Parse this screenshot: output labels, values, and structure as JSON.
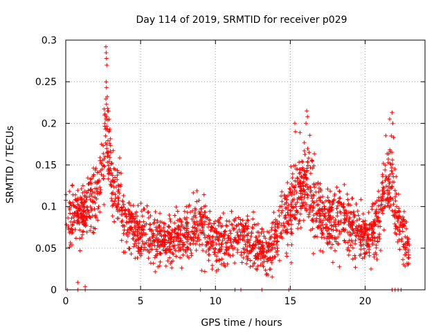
{
  "chart_data": {
    "type": "scatter",
    "title": "Day 114 of 2019, SRMTID for receiver p029",
    "xlabel": "GPS time / hours",
    "ylabel": "SRMTID / TECUs",
    "xlim": [
      0,
      24
    ],
    "ylim": [
      0,
      0.3
    ],
    "xticks": [
      0,
      5,
      10,
      15,
      20
    ],
    "xtick_labels": [
      "0",
      "5",
      "10",
      "15",
      "20"
    ],
    "yticks": [
      0,
      0.05,
      0.1,
      0.15,
      0.2,
      0.25,
      0.3
    ],
    "ytick_labels": [
      "0",
      "0.05",
      "0.1",
      "0.15",
      "0.2",
      "0.25",
      "0.3"
    ],
    "grid": true,
    "marker": "plus",
    "series_color": "#ff0000",
    "profile": [
      [
        0.0,
        0.095,
        0.02
      ],
      [
        0.3,
        0.085,
        0.022
      ],
      [
        0.7,
        0.09,
        0.02
      ],
      [
        1.0,
        0.09,
        0.02
      ],
      [
        1.3,
        0.095,
        0.02
      ],
      [
        1.6,
        0.105,
        0.02
      ],
      [
        1.9,
        0.11,
        0.02
      ],
      [
        2.2,
        0.12,
        0.025
      ],
      [
        2.5,
        0.16,
        0.03
      ],
      [
        2.7,
        0.195,
        0.03
      ],
      [
        2.9,
        0.16,
        0.03
      ],
      [
        3.2,
        0.12,
        0.025
      ],
      [
        3.6,
        0.1,
        0.025
      ],
      [
        4.0,
        0.085,
        0.02
      ],
      [
        4.5,
        0.075,
        0.018
      ],
      [
        5.0,
        0.07,
        0.018
      ],
      [
        5.5,
        0.065,
        0.017
      ],
      [
        6.0,
        0.062,
        0.017
      ],
      [
        6.5,
        0.055,
        0.016
      ],
      [
        7.0,
        0.06,
        0.017
      ],
      [
        7.5,
        0.065,
        0.017
      ],
      [
        8.0,
        0.07,
        0.018
      ],
      [
        8.5,
        0.075,
        0.018
      ],
      [
        9.0,
        0.08,
        0.02
      ],
      [
        9.3,
        0.075,
        0.02
      ],
      [
        9.6,
        0.065,
        0.018
      ],
      [
        10.0,
        0.06,
        0.018
      ],
      [
        10.5,
        0.055,
        0.017
      ],
      [
        11.0,
        0.06,
        0.018
      ],
      [
        11.5,
        0.065,
        0.018
      ],
      [
        12.0,
        0.06,
        0.018
      ],
      [
        12.5,
        0.055,
        0.017
      ],
      [
        13.0,
        0.05,
        0.017
      ],
      [
        13.5,
        0.045,
        0.015
      ],
      [
        14.0,
        0.06,
        0.02
      ],
      [
        14.5,
        0.08,
        0.022
      ],
      [
        15.0,
        0.1,
        0.025
      ],
      [
        15.4,
        0.12,
        0.025
      ],
      [
        15.8,
        0.12,
        0.03
      ],
      [
        16.2,
        0.13,
        0.03
      ],
      [
        16.6,
        0.11,
        0.025
      ],
      [
        17.0,
        0.09,
        0.022
      ],
      [
        17.5,
        0.085,
        0.02
      ],
      [
        18.0,
        0.08,
        0.02
      ],
      [
        18.5,
        0.09,
        0.022
      ],
      [
        19.0,
        0.075,
        0.02
      ],
      [
        19.5,
        0.07,
        0.018
      ],
      [
        20.0,
        0.065,
        0.017
      ],
      [
        20.5,
        0.07,
        0.018
      ],
      [
        20.8,
        0.075,
        0.02
      ],
      [
        21.1,
        0.105,
        0.022
      ],
      [
        21.4,
        0.13,
        0.028
      ],
      [
        21.7,
        0.14,
        0.03
      ],
      [
        22.0,
        0.1,
        0.025
      ],
      [
        22.3,
        0.08,
        0.02
      ],
      [
        22.6,
        0.06,
        0.017
      ],
      [
        22.9,
        0.045,
        0.015
      ]
    ],
    "spikes": [
      [
        2.68,
        0.292
      ],
      [
        2.7,
        0.285
      ],
      [
        2.72,
        0.278
      ],
      [
        2.74,
        0.27
      ],
      [
        2.7,
        0.25
      ],
      [
        2.72,
        0.243
      ],
      [
        2.8,
        0.218
      ],
      [
        2.85,
        0.215
      ],
      [
        2.6,
        0.21
      ],
      [
        2.9,
        0.205
      ],
      [
        16.1,
        0.215
      ],
      [
        16.15,
        0.208
      ],
      [
        16.05,
        0.2
      ],
      [
        15.3,
        0.2
      ],
      [
        15.35,
        0.19
      ],
      [
        21.8,
        0.213
      ],
      [
        21.85,
        0.2
      ],
      [
        21.75,
        0.185
      ],
      [
        21.9,
        0.183
      ]
    ],
    "zero_points": [
      0.1,
      0.8,
      1.3,
      9.0,
      11.3,
      11.7,
      13.1,
      14.9,
      21.8,
      22.0,
      22.2,
      22.4
    ],
    "low_outliers": [
      [
        0.8,
        0.009
      ],
      [
        1.3,
        0.004
      ]
    ],
    "samples_per_series": 2200,
    "x_max_data": 23.0
  }
}
